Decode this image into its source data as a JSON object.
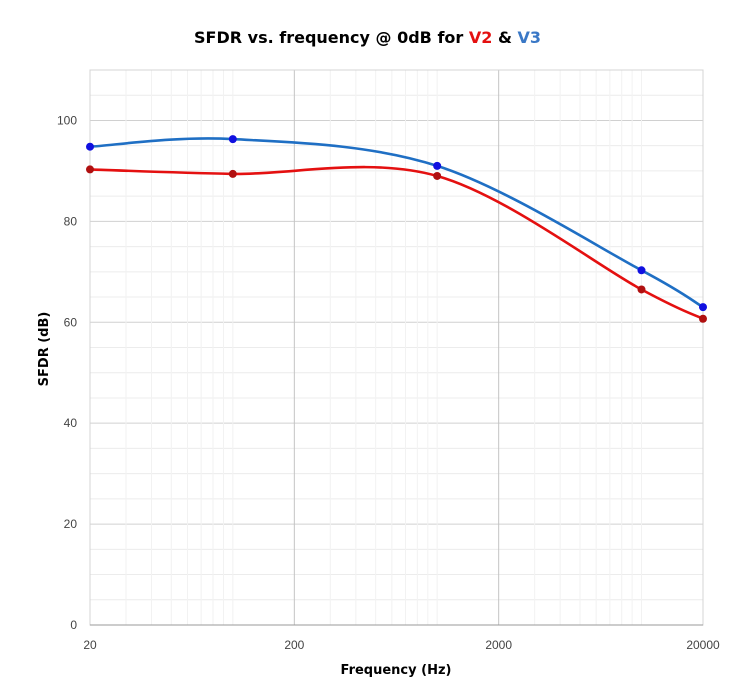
{
  "chart_data": {
    "type": "line",
    "title_parts": [
      "SFDR vs. frequency @ 0dB for ",
      "V2",
      " & ",
      "V3"
    ],
    "xlabel": "Frequency (Hz)",
    "ylabel": "SFDR (dB)",
    "x_scale": "log",
    "xlim": [
      20,
      20000
    ],
    "ylim": [
      0,
      110
    ],
    "x_ticks": [
      20,
      200,
      2000,
      20000
    ],
    "y_ticks": [
      0,
      20,
      40,
      60,
      80,
      100
    ],
    "grid": true,
    "legend": "none",
    "series": [
      {
        "name": "V2",
        "color": "#e41010",
        "x": [
          20,
          100,
          1000,
          10000,
          20000
        ],
        "y": [
          90.3,
          89.4,
          89.0,
          66.5,
          60.7
        ]
      },
      {
        "name": "V3",
        "color": "#1f6fc4",
        "x": [
          20,
          100,
          1000,
          10000,
          20000
        ],
        "y": [
          94.8,
          96.3,
          91.0,
          70.3,
          63.0
        ]
      }
    ]
  }
}
